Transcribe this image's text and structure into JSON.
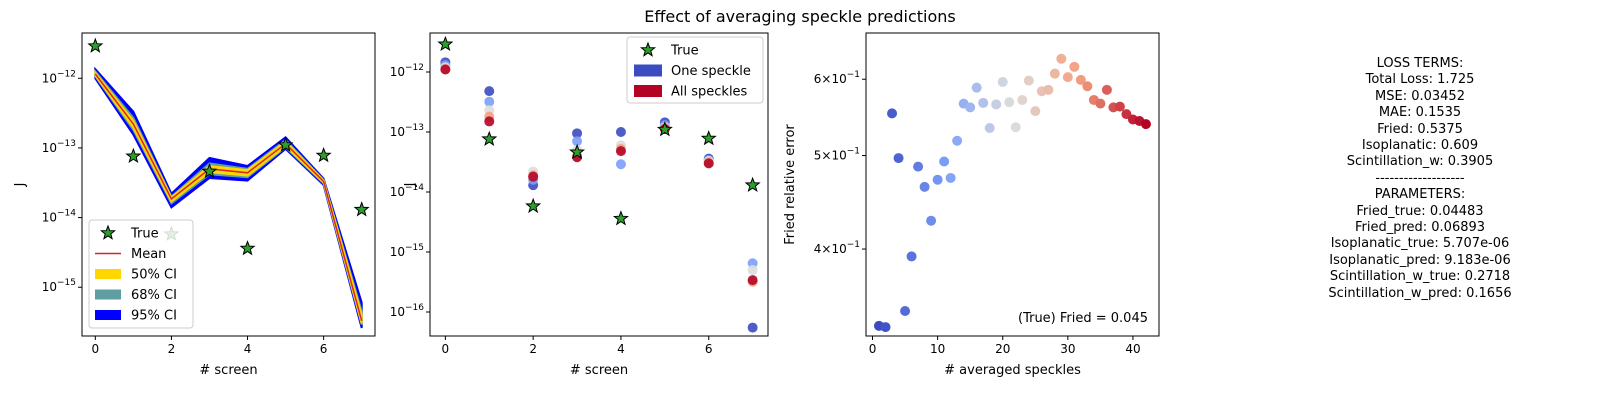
{
  "figure": {
    "title": "Effect of averaging speckle predictions"
  },
  "colors": {
    "true_star": "#2ca02c",
    "mean_line": "#d62728",
    "ci50": "#ffd700",
    "ci68": "#5f9ea0",
    "ci95": "#0000ff",
    "one_speckle": "#3b4cc0",
    "all_speckles": "#b40426"
  },
  "chart_data": [
    {
      "type": "line",
      "xlabel": "# screen",
      "ylabel": "J",
      "yscale": "log",
      "xlim": [
        -0.35,
        7.35
      ],
      "ylim_exp": [
        -15.7,
        -11.35
      ],
      "x_ticks": [
        0,
        2,
        4,
        6
      ],
      "y_ticks": [
        {
          "exp": -12,
          "label": "10^-12"
        },
        {
          "exp": -13,
          "label": "10^-13"
        },
        {
          "exp": -14,
          "label": "10^-14"
        },
        {
          "exp": -15,
          "label": "10^-15"
        }
      ],
      "x": [
        0,
        1,
        2,
        3,
        4,
        5,
        6,
        7
      ],
      "true_values": [
        2.9e-12,
        7.6e-14,
        5.8e-15,
        4.6e-14,
        3.6e-15,
        1.1e-13,
        7.8e-14,
        1.3e-14
      ],
      "mean": [
        1.15e-12,
        2.2e-13,
        1.85e-14,
        5e-14,
        4.4e-14,
        1.15e-13,
        3.3e-14,
        3.3e-16
      ],
      "ci95": {
        "lower": [
          1e-12,
          1.55e-13,
          1.4e-14,
          3.7e-14,
          3.4e-14,
          9.7e-14,
          2.95e-14,
          2.6e-16
        ],
        "upper": [
          1.35e-12,
          3.3e-13,
          2.2e-14,
          7.2e-14,
          5.5e-14,
          1.42e-13,
          3.6e-14,
          6e-16
        ]
      },
      "ci68": {
        "lower": [
          1.07e-12,
          1.8e-13,
          1.6e-14,
          4.2e-14,
          3.8e-14,
          1.02e-13,
          3.1e-14,
          2.9e-16
        ],
        "upper": [
          1.25e-12,
          2.7e-13,
          2e-14,
          6e-14,
          5e-14,
          1.3e-13,
          3.45e-14,
          4.5e-16
        ]
      },
      "ci50": {
        "lower": [
          1.1e-12,
          1.95e-13,
          1.7e-14,
          4.5e-14,
          4e-14,
          1.06e-13,
          3.2e-14,
          3.05e-16
        ],
        "upper": [
          1.2e-12,
          2.45e-13,
          1.95e-14,
          5.5e-14,
          4.8e-14,
          1.24e-13,
          3.4e-14,
          4e-16
        ]
      },
      "legend": [
        "True",
        "Mean",
        "50% CI",
        "68% CI",
        "95% CI"
      ],
      "legend_position": "lower-left"
    },
    {
      "type": "scatter",
      "xlabel": "# screen",
      "ylabel": "J",
      "yscale": "log",
      "xlim": [
        -0.35,
        7.35
      ],
      "ylim_exp": [
        -16.4,
        -11.35
      ],
      "x_ticks": [
        0,
        2,
        4,
        6
      ],
      "y_ticks": [
        {
          "exp": -12,
          "label": "10^-12"
        },
        {
          "exp": -13,
          "label": "10^-13"
        },
        {
          "exp": -14,
          "label": "10^-14"
        },
        {
          "exp": -15,
          "label": "10^-15"
        },
        {
          "exp": -16,
          "label": "10^-16"
        }
      ],
      "true_values": [
        2.9e-12,
        7.6e-14,
        5.8e-15,
        4.6e-14,
        3.6e-15,
        1.1e-13,
        7.8e-14,
        1.3e-14
      ],
      "predictions": [
        [
          1.45e-12,
          1.3e-12,
          1.2e-12,
          1.12e-12,
          1.1e-12
        ],
        [
          4.8e-13,
          3.2e-13,
          2.3e-13,
          1.8e-13,
          1.5e-13
        ],
        [
          1.3e-14,
          1.6e-14,
          2.2e-14,
          1.9e-14,
          1.8e-14
        ],
        [
          9.5e-14,
          7e-14,
          5e-14,
          4e-14,
          3.8e-14
        ],
        [
          1e-13,
          2.9e-14,
          6e-14,
          5.2e-14,
          4.8e-14
        ],
        [
          1.45e-13,
          1.3e-13,
          1.2e-13,
          1.15e-13,
          1.12e-13
        ],
        [
          3.6e-14,
          3.4e-14,
          3.3e-14,
          3.1e-14,
          3e-14
        ],
        [
          5.5e-17,
          6.5e-16,
          5e-16,
          3.2e-16,
          3.4e-16
        ]
      ],
      "legend": [
        "True",
        "One speckle",
        "All speckles"
      ],
      "legend_position": "top-right"
    },
    {
      "type": "scatter",
      "xlabel": "# averaged speckles",
      "ylabel": "Fried relative error",
      "yscale": "log",
      "xlim": [
        -1,
        44
      ],
      "ylim": [
        0.325,
        0.67
      ],
      "x_ticks": [
        0,
        10,
        20,
        30,
        40
      ],
      "y_ticks": [
        {
          "value": 0.6,
          "label": "6 × 10^-1"
        },
        {
          "value": 0.5,
          "label": "5 × 10^-1"
        },
        {
          "value": 0.4,
          "label": "4 × 10^-1"
        }
      ],
      "x": [
        1,
        2,
        3,
        4,
        5,
        6,
        7,
        8,
        9,
        10,
        11,
        12,
        13,
        14,
        15,
        16,
        17,
        18,
        19,
        20,
        21,
        22,
        23,
        24,
        25,
        26,
        27,
        28,
        29,
        30,
        31,
        32,
        33,
        34,
        35,
        36,
        37,
        38,
        39,
        40,
        41,
        42
      ],
      "y": [
        0.333,
        0.332,
        0.553,
        0.497,
        0.345,
        0.393,
        0.487,
        0.464,
        0.428,
        0.472,
        0.493,
        0.474,
        0.518,
        0.566,
        0.561,
        0.588,
        0.567,
        0.534,
        0.565,
        0.596,
        0.568,
        0.535,
        0.571,
        0.598,
        0.556,
        0.583,
        0.585,
        0.608,
        0.63,
        0.603,
        0.618,
        0.599,
        0.59,
        0.571,
        0.566,
        0.585,
        0.561,
        0.562,
        0.552,
        0.545,
        0.543,
        0.539
      ],
      "colormap": "coolwarm",
      "annotation": "(True) Fried = 0.045"
    }
  ],
  "loss_panel": {
    "lines": [
      "LOSS TERMS:",
      "Total Loss: 1.725",
      "MSE: 0.03452",
      "MAE: 0.1535",
      "Fried: 0.5375",
      "Isoplanatic: 0.609",
      "Scintillation_w: 0.3905",
      "-------------------",
      "PARAMETERS:",
      "Fried_true: 0.04483",
      "Fried_pred: 0.06893",
      "Isoplanatic_true: 5.707e-06",
      "Isoplanatic_pred: 9.183e-06",
      "Scintillation_w_true: 0.2718",
      "Scintillation_w_pred: 0.1656"
    ]
  }
}
